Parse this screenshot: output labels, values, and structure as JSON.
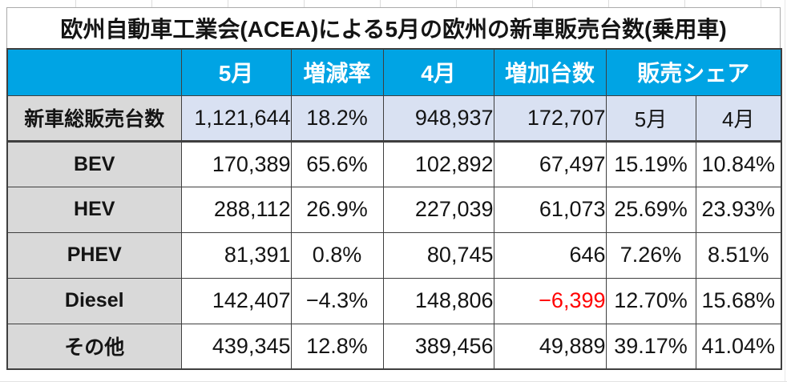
{
  "title": "欧州自動車工業会(ACEA)による5月の欧州の新車販売台数(乗用車)",
  "colors": {
    "header_bg": "#00A4E4",
    "header_text": "#FFFFFF",
    "label_bg": "#D9D9D9",
    "total_row_bg": "#D9E1F2",
    "negative_text": "#FF0000",
    "border": "#3F3F3F"
  },
  "header": {
    "col_label": "",
    "col_may": "5月",
    "col_rate": "増減率",
    "col_april": "4月",
    "col_increase": "増加台数",
    "col_share": "販売シェア"
  },
  "rows": [
    {
      "label": "新車総販売台数",
      "may": "1,121,644",
      "rate": "18.2%",
      "april": "948,937",
      "increase": "172,707",
      "share_may": "5月",
      "share_april": "4月",
      "is_total_row": true
    },
    {
      "label": "BEV",
      "may": "170,389",
      "rate": "65.6%",
      "april": "102,892",
      "increase": "67,497",
      "share_may": "15.19%",
      "share_april": "10.84%"
    },
    {
      "label": "HEV",
      "may": "288,112",
      "rate": "26.9%",
      "april": "227,039",
      "increase": "61,073",
      "share_may": "25.69%",
      "share_april": "23.93%"
    },
    {
      "label": "PHEV",
      "may": "81,391",
      "rate": "0.8%",
      "april": "80,745",
      "increase": "646",
      "share_may": "7.26%",
      "share_april": "8.51%"
    },
    {
      "label": "Diesel",
      "may": "142,407",
      "rate": "−4.3%",
      "april": "148,806",
      "increase": "−6,399",
      "increase_negative": true,
      "share_may": "12.70%",
      "share_april": "15.68%"
    },
    {
      "label": "その他",
      "may": "439,345",
      "rate": "12.8%",
      "april": "389,456",
      "increase": "49,889",
      "share_may": "39.17%",
      "share_april": "41.04%"
    }
  ],
  "chart_data": {
    "type": "table",
    "title": "欧州自動車工業会(ACEA)による5月の欧州の新車販売台数(乗用車)",
    "columns": [
      "",
      "5月",
      "増減率",
      "4月",
      "増加台数",
      "販売シェア 5月",
      "販売シェア 4月"
    ],
    "rows": [
      [
        "新車総販売台数",
        "1,121,644",
        "18.2%",
        "948,937",
        "172,707",
        "5月",
        "4月"
      ],
      [
        "BEV",
        "170,389",
        "65.6%",
        "102,892",
        "67,497",
        "15.19%",
        "10.84%"
      ],
      [
        "HEV",
        "288,112",
        "26.9%",
        "227,039",
        "61,073",
        "25.69%",
        "23.93%"
      ],
      [
        "PHEV",
        "81,391",
        "0.8%",
        "80,745",
        "646",
        "7.26%",
        "8.51%"
      ],
      [
        "Diesel",
        "142,407",
        "−4.3%",
        "148,806",
        "−6,399",
        "12.70%",
        "15.68%"
      ],
      [
        "その他",
        "439,345",
        "12.8%",
        "389,456",
        "49,889",
        "39.17%",
        "41.04%"
      ]
    ],
    "notes": "Diesel 増加台数 (−6,399) is rendered in red"
  }
}
